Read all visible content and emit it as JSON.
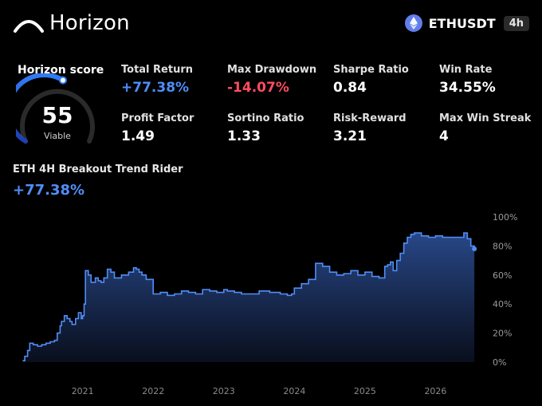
{
  "header": {
    "brand": "Horizon",
    "ticker": "ETHUSDT",
    "timeframe": "4h",
    "icons": {
      "logo": "horizon-arc-logo",
      "asset": "ethereum-icon"
    }
  },
  "score": {
    "title": "Horizon score",
    "value": 55,
    "label": "Viable"
  },
  "metrics": [
    {
      "label": "Total Return",
      "value": "+77.38%",
      "color": "#4f8ef7"
    },
    {
      "label": "Max Drawdown",
      "value": "-14.07%",
      "color": "#ff4d5e"
    },
    {
      "label": "Sharpe Ratio",
      "value": "0.84",
      "color": "#ffffff"
    },
    {
      "label": "Win Rate",
      "value": "34.55%",
      "color": "#ffffff"
    },
    {
      "label": "Profit Factor",
      "value": "1.49",
      "color": "#ffffff"
    },
    {
      "label": "Sortino Ratio",
      "value": "1.33",
      "color": "#ffffff"
    },
    {
      "label": "Risk-Reward",
      "value": "3.21",
      "color": "#ffffff"
    },
    {
      "label": "Max Win Streak",
      "value": "4",
      "color": "#ffffff"
    }
  ],
  "strategy": {
    "name": "ETH 4H Breakout Trend Rider",
    "return": "+77.38%"
  },
  "colors": {
    "accent": "#4f8ef7",
    "negative": "#ff4d5e",
    "background": "#000000"
  },
  "chart_data": {
    "type": "area",
    "title": "",
    "xlabel": "",
    "ylabel": "",
    "ylim": [
      0,
      100
    ],
    "xlim": [
      2020.1,
      2026.65
    ],
    "y_ticks": [
      "0%",
      "20%",
      "40%",
      "60%",
      "80%",
      "100%"
    ],
    "x_ticks": [
      "2021",
      "2022",
      "2023",
      "2024",
      "2025",
      "2026"
    ],
    "x_tick_values": [
      2021,
      2022,
      2023,
      2024,
      2025,
      2026
    ],
    "grid": false,
    "legend": "none",
    "series": [
      {
        "x": [
          2020.15,
          2020.18,
          2020.22,
          2020.25,
          2020.3,
          2020.36,
          2020.42,
          2020.48,
          2020.54,
          2020.6,
          2020.64,
          2020.68,
          2020.7,
          2020.74,
          2020.78,
          2020.82,
          2020.85,
          2020.9,
          2020.94,
          2020.98,
          2021.0,
          2021.02,
          2021.04,
          2021.08,
          2021.12,
          2021.18,
          2021.22,
          2021.26,
          2021.3,
          2021.35,
          2021.4,
          2021.45,
          2021.55,
          2021.65,
          2021.72,
          2021.76,
          2021.8,
          2021.84,
          2021.9,
          2022.0,
          2022.1,
          2022.2,
          2022.3,
          2022.4,
          2022.5,
          2022.6,
          2022.7,
          2022.8,
          2022.9,
          2023.0,
          2023.05,
          2023.15,
          2023.25,
          2023.35,
          2023.5,
          2023.65,
          2023.8,
          2023.9,
          2023.96,
          2024.0,
          2024.1,
          2024.2,
          2024.3,
          2024.4,
          2024.5,
          2024.6,
          2024.7,
          2024.8,
          2024.9,
          2025.0,
          2025.1,
          2025.2,
          2025.28,
          2025.32,
          2025.36,
          2025.4,
          2025.45,
          2025.5,
          2025.55,
          2025.6,
          2025.65,
          2025.7,
          2025.8,
          2025.9,
          2026.0,
          2026.1,
          2026.2,
          2026.3,
          2026.4,
          2026.45,
          2026.5,
          2026.55
        ],
        "y": [
          1,
          4,
          8,
          13,
          12,
          11,
          12,
          13,
          14,
          15,
          20,
          25,
          28,
          32,
          30,
          28,
          26,
          30,
          34,
          30,
          32,
          40,
          63,
          60,
          55,
          58,
          56,
          55,
          58,
          64,
          62,
          58,
          60,
          62,
          65,
          64,
          62,
          60,
          57,
          47,
          48,
          46,
          47,
          49,
          48,
          47,
          50,
          49,
          48,
          50,
          49,
          48,
          47,
          47,
          49,
          48,
          47,
          46,
          47,
          51,
          54,
          57,
          68,
          66,
          62,
          60,
          61,
          63,
          60,
          62,
          59,
          58,
          66,
          67,
          69,
          63,
          70,
          75,
          82,
          86,
          88,
          89,
          87,
          86,
          87,
          86,
          86,
          86,
          89,
          85,
          80,
          78
        ]
      }
    ]
  }
}
